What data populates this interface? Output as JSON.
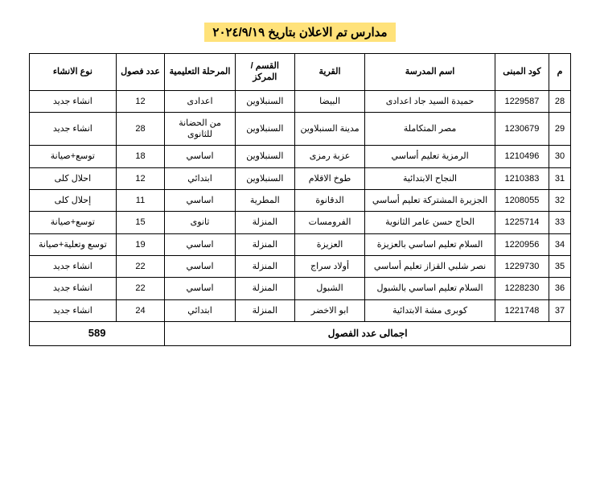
{
  "title": "مدارس تم الاعلان بتاريخ ٢٠٢٤/٩/١٩",
  "headers": {
    "seq": "م",
    "code": "كود المبنى",
    "school": "اسم المدرسة",
    "village": "القرية",
    "markaz": "القسم / المركز",
    "stage": "المرحلة التعليمية",
    "classes": "عدد فصول",
    "type": "نوع الانشاء"
  },
  "rows": [
    {
      "seq": "28",
      "code": "1229587",
      "school": "حميدة السيد جاد اعدادى",
      "village": "البيضا",
      "markaz": "السنبلاوين",
      "stage": "اعدادى",
      "classes": "12",
      "type": "انشاء جديد"
    },
    {
      "seq": "29",
      "code": "1230679",
      "school": "مصر المتكاملة",
      "village": "مدينة السنبلاوين",
      "markaz": "السنبلاوين",
      "stage": "من الحضانة للثانوى",
      "classes": "28",
      "type": "انشاء جديد"
    },
    {
      "seq": "30",
      "code": "1210496",
      "school": "الرمزية تعليم أساسي",
      "village": "عزبة رمزى",
      "markaz": "السنبلاوين",
      "stage": "اساسي",
      "classes": "18",
      "type": "توسع+صيانة"
    },
    {
      "seq": "31",
      "code": "1210383",
      "school": "النجاح الابتدائية",
      "village": "طوخ الاقلام",
      "markaz": "السنبلاوين",
      "stage": "ابتدائي",
      "classes": "12",
      "type": "احلال كلى"
    },
    {
      "seq": "32",
      "code": "1208055",
      "school": "الجزيرة المشتركة تعليم أساسي",
      "village": "الدقانوة",
      "markaz": "المطرية",
      "stage": "اساسي",
      "classes": "11",
      "type": "إحلال كلى"
    },
    {
      "seq": "33",
      "code": "1225714",
      "school": "الحاج حسن عامر الثانوية",
      "village": "الفرومسات",
      "markaz": "المنزلة",
      "stage": "ثانوى",
      "classes": "15",
      "type": "توسع+صيانة"
    },
    {
      "seq": "34",
      "code": "1220956",
      "school": "السلام تعليم اساسي بالعزيزة",
      "village": "العزيزة",
      "markaz": "المنزلة",
      "stage": "اساسي",
      "classes": "19",
      "type": "توسع وتعلية+صيانة"
    },
    {
      "seq": "35",
      "code": "1229730",
      "school": "نصر شلبي القزاز تعليم أساسي",
      "village": "أولاد سراج",
      "markaz": "المنزلة",
      "stage": "اساسي",
      "classes": "22",
      "type": "انشاء جديد"
    },
    {
      "seq": "36",
      "code": "1228230",
      "school": "السلام تعليم اساسي بالشبول",
      "village": "الشبول",
      "markaz": "المنزلة",
      "stage": "اساسي",
      "classes": "22",
      "type": "انشاء جديد"
    },
    {
      "seq": "37",
      "code": "1221748",
      "school": "كوبرى مشة الابتدائية",
      "village": "ابو الاخضر",
      "markaz": "المنزلة",
      "stage": "ابتدائي",
      "classes": "24",
      "type": "انشاء جديد"
    }
  ],
  "total": {
    "label": "اجمالى عدد الفصول",
    "value": "589"
  },
  "style": {
    "highlight_bg": "#ffe27a",
    "border_color": "#000000",
    "page_bg": "#ffffff"
  }
}
